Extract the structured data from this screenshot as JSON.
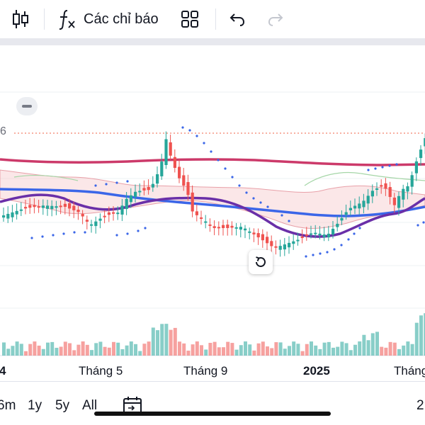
{
  "toolbar": {
    "indicators_label": "Các chỉ báo",
    "icons": [
      "candlestick-icon",
      "function-fx-icon",
      "layout-grid-icon",
      "undo-icon",
      "redo-icon"
    ]
  },
  "chart": {
    "price_label": "6",
    "colors": {
      "up": "#26a69a",
      "down": "#ef5350",
      "red_ma": "#cc3a6a",
      "blue_ma": "#3b66e8",
      "purple_ma": "#6a2fa8",
      "sar_dots": "#3b66e8",
      "cloud_fill": "#f6c9cd",
      "cloud_green": "#a5d6a7",
      "dotted_line": "#f2816b"
    },
    "x_labels": [
      {
        "text": "4",
        "bold": true
      },
      {
        "text": "Tháng 5",
        "bold": false
      },
      {
        "text": "Tháng 9",
        "bold": false
      },
      {
        "text": "2025",
        "bold": true
      },
      {
        "text": "Tháng",
        "bold": false
      }
    ]
  },
  "ranges": {
    "r6m": "6m",
    "r1y": "1y",
    "r5y": "5y",
    "all": "All",
    "right_cut": "2"
  }
}
